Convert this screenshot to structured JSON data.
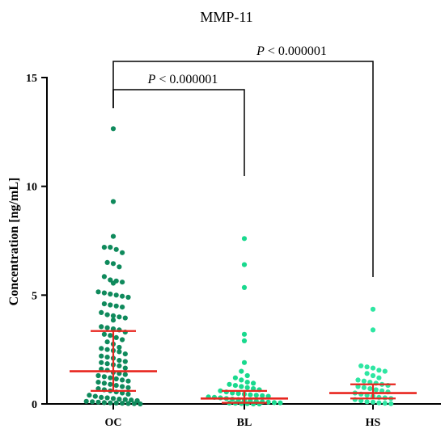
{
  "chart_data": {
    "type": "scatter",
    "title": "MMP-11",
    "ylabel": "Concentration [ng/mL]",
    "xlabel": "",
    "ylim": [
      0,
      15
    ],
    "yticks": [
      0,
      5,
      10,
      15
    ],
    "grid": false,
    "groups": [
      {
        "name": "OC",
        "color": "#0f8a5c",
        "median": 1.5,
        "q1": 0.6,
        "q3": 3.35,
        "values": [
          12.65,
          9.3,
          7.7,
          7.2,
          7.2,
          7.1,
          6.95,
          6.5,
          6.45,
          6.3,
          5.85,
          5.7,
          5.65,
          5.6,
          5.55,
          5.15,
          5.1,
          5.05,
          5.0,
          4.95,
          4.9,
          4.6,
          4.55,
          4.5,
          4.45,
          4.2,
          4.1,
          4.05,
          4.0,
          3.95,
          3.85,
          3.55,
          3.5,
          3.45,
          3.4,
          3.3,
          3.2,
          3.15,
          3.05,
          2.95,
          2.85,
          2.75,
          2.6,
          2.55,
          2.5,
          2.45,
          2.4,
          2.3,
          2.2,
          2.15,
          2.1,
          2.0,
          1.95,
          1.9,
          1.85,
          1.8,
          1.75,
          1.65,
          1.6,
          1.55,
          1.45,
          1.4,
          1.35,
          1.3,
          1.25,
          1.2,
          1.15,
          1.1,
          1.05,
          1.0,
          0.95,
          0.9,
          0.85,
          0.8,
          0.75,
          0.7,
          0.65,
          0.6,
          0.55,
          0.5,
          0.45,
          0.4,
          0.35,
          0.3,
          0.28,
          0.25,
          0.22,
          0.2,
          0.18,
          0.15,
          0.12,
          0.1,
          0.08,
          0.06,
          0.05,
          0.04,
          0.03,
          0.02,
          0.01,
          0.0
        ]
      },
      {
        "name": "BL",
        "color": "#19d98e",
        "median": 0.25,
        "q1": 0.05,
        "q3": 0.6,
        "values": [
          7.6,
          6.4,
          5.35,
          3.2,
          2.9,
          1.9,
          1.5,
          1.3,
          1.2,
          1.1,
          1.0,
          0.95,
          0.9,
          0.85,
          0.8,
          0.75,
          0.7,
          0.65,
          0.6,
          0.55,
          0.5,
          0.48,
          0.45,
          0.42,
          0.4,
          0.38,
          0.35,
          0.32,
          0.3,
          0.28,
          0.25,
          0.22,
          0.2,
          0.18,
          0.15,
          0.12,
          0.1,
          0.08,
          0.06,
          0.05,
          0.04,
          0.03,
          0.02,
          0.01,
          0.0,
          0.0
        ]
      },
      {
        "name": "HS",
        "color": "#2ee6a2",
        "median": 0.5,
        "q1": 0.25,
        "q3": 0.9,
        "values": [
          4.35,
          3.4,
          1.75,
          1.7,
          1.65,
          1.55,
          1.5,
          1.4,
          1.3,
          1.2,
          1.1,
          1.05,
          1.0,
          0.95,
          0.9,
          0.85,
          0.8,
          0.75,
          0.7,
          0.65,
          0.6,
          0.55,
          0.5,
          0.45,
          0.4,
          0.35,
          0.3,
          0.28,
          0.25,
          0.2,
          0.15,
          0.1,
          0.08,
          0.05,
          0.03,
          0.01
        ]
      }
    ],
    "annotations": [
      {
        "from": "OC",
        "to": "BL",
        "text_italic": "P",
        "text_rest": " < 0.000001"
      },
      {
        "from": "OC",
        "to": "HS",
        "text_italic": "P",
        "text_rest": " < 0.000001"
      }
    ]
  }
}
